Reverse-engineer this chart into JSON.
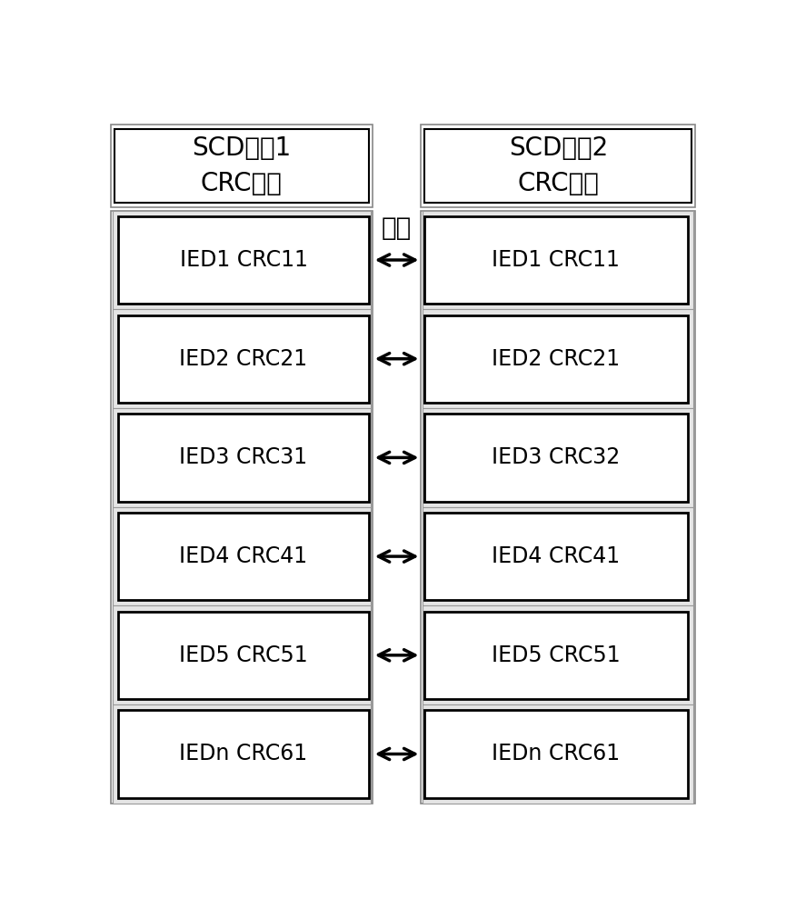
{
  "bg_color": "#ffffff",
  "left_header_line1": "SCD版本1",
  "left_header_line2": "CRC列表",
  "right_header_line1": "SCD版本2",
  "right_header_line2": "CRC列表",
  "compare_label": "对比",
  "rows": [
    {
      "left": "IED1 CRC11",
      "right": "IED1 CRC11"
    },
    {
      "left": "IED2 CRC21",
      "right": "IED2 CRC21"
    },
    {
      "left": "IED3 CRC31",
      "right": "IED3 CRC32"
    },
    {
      "left": "IED4 CRC41",
      "right": "IED4 CRC41"
    },
    {
      "left": "IED5 CRC51",
      "right": "IED5 CRC51"
    },
    {
      "left": "IEDn CRC61",
      "right": "IEDn CRC61"
    }
  ],
  "header_fontsize": 20,
  "row_fontsize": 17,
  "compare_fontsize": 20,
  "lw_outer": 1.2,
  "lw_inner": 2.0,
  "lw_header": 1.5
}
